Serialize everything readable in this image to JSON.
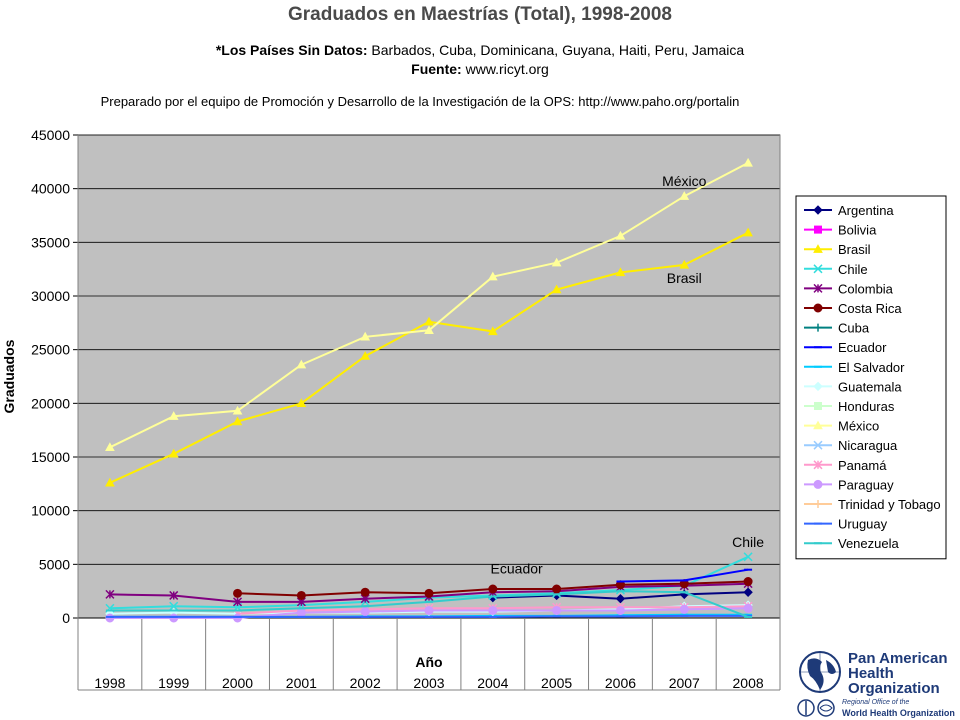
{
  "header": {
    "title": "Graduados en Maestrías (Total), 1998-2008",
    "missing_label": "*Los Países Sin Datos:",
    "missing_countries": "Barbados, Cuba, Dominicana, Guyana, Haiti, Peru, Jamaica",
    "source_label": "Fuente:",
    "source_value": "www.ricyt.org",
    "prepared_by": "Preparado por el equipo de Promoción y Desarrollo de la Investigación de la OPS: http://www.paho.org/portalin"
  },
  "logo": {
    "line1": "Pan American",
    "line2": "Health",
    "line3": "Organization",
    "sub1": "Regional Office of the",
    "sub2": "World Health Organization",
    "color": "#1e3a78"
  },
  "chart_data": {
    "type": "line",
    "xlabel": "Año",
    "ylabel": "Graduados",
    "ylim": [
      0,
      45000
    ],
    "yticks": [
      0,
      5000,
      10000,
      15000,
      20000,
      25000,
      30000,
      35000,
      40000,
      45000
    ],
    "grid": true,
    "legend_position": "right",
    "plot_background": "#c0c0c0",
    "categories": [
      "1998",
      "1999",
      "2000",
      "2001",
      "2002",
      "2003",
      "2004",
      "2005",
      "2006",
      "2007",
      "2008"
    ],
    "annotations": [
      {
        "text": "México",
        "x": "2007",
        "y": 39300
      },
      {
        "text": "Brasil",
        "x": "2007",
        "y": 32900
      },
      {
        "text": "Ecuador",
        "x": "2005",
        "y": 3200
      },
      {
        "text": "Chile",
        "x": "2008",
        "y": 5700
      }
    ],
    "series": [
      {
        "name": "Argentina",
        "color": "#000080",
        "marker": "diamond",
        "values": [
          null,
          null,
          null,
          null,
          null,
          null,
          1900,
          2100,
          1800,
          2200,
          2400
        ]
      },
      {
        "name": "Bolivia",
        "color": "#ff00ff",
        "marker": "square",
        "values": [
          null,
          null,
          null,
          null,
          null,
          null,
          null,
          null,
          null,
          null,
          null
        ]
      },
      {
        "name": "Brasil",
        "color": "#ffee00",
        "marker": "triangle",
        "values": [
          12600,
          15300,
          18300,
          20000,
          24400,
          27600,
          26700,
          30600,
          32200,
          32900,
          35900
        ]
      },
      {
        "name": "Chile",
        "color": "#33dddd",
        "marker": "x",
        "values": [
          900,
          1100,
          1000,
          1200,
          1500,
          1900,
          2100,
          2300,
          2600,
          3000,
          5700
        ]
      },
      {
        "name": "Colombia",
        "color": "#800080",
        "marker": "star",
        "values": [
          2200,
          2100,
          1500,
          1500,
          1800,
          2000,
          2400,
          2500,
          2900,
          3000,
          3200
        ]
      },
      {
        "name": "Costa Rica",
        "color": "#800000",
        "marker": "circle",
        "values": [
          null,
          null,
          2300,
          2100,
          2400,
          2300,
          2700,
          2700,
          3100,
          3200,
          3400
        ]
      },
      {
        "name": "Cuba",
        "color": "#008080",
        "marker": "plus",
        "values": [
          null,
          null,
          null,
          null,
          null,
          null,
          null,
          null,
          null,
          null,
          null
        ]
      },
      {
        "name": "Ecuador",
        "color": "#0000ff",
        "marker": "dash",
        "values": [
          null,
          null,
          null,
          null,
          null,
          null,
          null,
          null,
          3400,
          3500,
          4500
        ]
      },
      {
        "name": "El Salvador",
        "color": "#00ccff",
        "marker": "dash",
        "values": [
          100,
          100,
          100,
          100,
          150,
          150,
          200,
          200,
          250,
          300,
          300
        ]
      },
      {
        "name": "Guatemala",
        "color": "#ccffff",
        "marker": "diamond",
        "values": [
          400,
          500,
          400,
          500,
          500,
          600,
          600,
          700,
          800,
          1100,
          1200
        ]
      },
      {
        "name": "Honduras",
        "color": "#ccffcc",
        "marker": "square",
        "values": [
          null,
          null,
          null,
          null,
          null,
          null,
          null,
          null,
          null,
          null,
          null
        ]
      },
      {
        "name": "México",
        "color": "#ffff99",
        "marker": "triangle",
        "values": [
          15900,
          18800,
          19300,
          23600,
          26200,
          26800,
          31800,
          33100,
          35600,
          39300,
          42400
        ]
      },
      {
        "name": "Nicaragua",
        "color": "#99ccff",
        "marker": "x",
        "values": [
          null,
          null,
          null,
          null,
          null,
          null,
          null,
          null,
          null,
          null,
          null
        ]
      },
      {
        "name": "Panamá",
        "color": "#ff99cc",
        "marker": "star",
        "values": [
          null,
          null,
          400,
          700,
          800,
          900,
          900,
          1000,
          1000,
          1000,
          1100
        ]
      },
      {
        "name": "Paraguay",
        "color": "#cc99ff",
        "marker": "circle",
        "values": [
          0,
          0,
          0,
          500,
          600,
          700,
          700,
          700,
          700,
          800,
          900
        ]
      },
      {
        "name": "Trinidad y Tobago",
        "color": "#ffcc99",
        "marker": "plus",
        "values": [
          null,
          null,
          null,
          null,
          null,
          null,
          null,
          null,
          null,
          null,
          null
        ]
      },
      {
        "name": "Uruguay",
        "color": "#3366ff",
        "marker": "dash",
        "values": [
          100,
          100,
          100,
          100,
          100,
          100,
          100,
          150,
          150,
          200,
          200
        ]
      },
      {
        "name": "Venezuela",
        "color": "#33cccc",
        "marker": "dash",
        "values": [
          700,
          700,
          700,
          900,
          1100,
          1500,
          2000,
          2200,
          2500,
          2400,
          100
        ]
      }
    ]
  }
}
